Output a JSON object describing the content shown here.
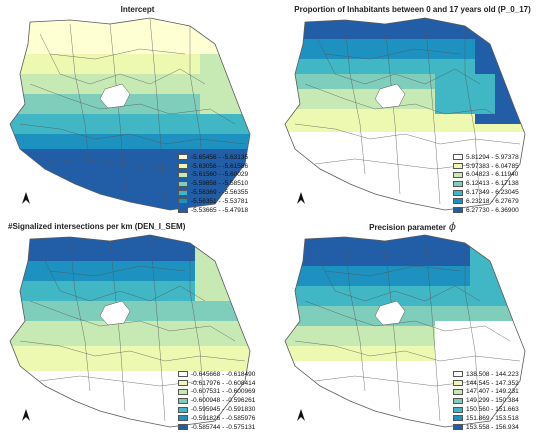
{
  "colors": {
    "outline": "#5a5a5a",
    "lake": "#ffffff",
    "ramp": [
      "#ffffff",
      "#eef6bb",
      "#c5e29a",
      "#7cc5ad",
      "#3fa8b6",
      "#2a7fb0",
      "#21559a"
    ]
  },
  "panels": [
    {
      "title": "Intercept",
      "legend": [
        {
          "label": "-5.65456 - -5.63135",
          "color": "#ffffd4"
        },
        {
          "label": "-5.63056 - -5.61586",
          "color": "#edf8b1"
        },
        {
          "label": "-5.61560 - -5.60029",
          "color": "#c7e9b4"
        },
        {
          "label": "-5.59858 - -5.58510",
          "color": "#7fcdbb"
        },
        {
          "label": "-5.58369 - -5.56355",
          "color": "#41b6c4"
        },
        {
          "label": "-5.56351 - -5.53781",
          "color": "#1d91c0"
        },
        {
          "label": "-5.53665 - -5.47918",
          "color": "#225ea8"
        }
      ]
    },
    {
      "title": "Proportion of Inhabitants between 0 and 17 years old (P_0_17)",
      "legend": [
        {
          "label": "5.81294 - 5.97378",
          "color": "#ffffff"
        },
        {
          "label": "5.97383 - 6.04785",
          "color": "#edf8b1"
        },
        {
          "label": "6.04823 - 6.11940",
          "color": "#c7e9b4"
        },
        {
          "label": "6.12413 - 6.17138",
          "color": "#7fcdbb"
        },
        {
          "label": "6.17349 - 6.23045",
          "color": "#41b6c4"
        },
        {
          "label": "6.23218 - 6.27679",
          "color": "#1d91c0"
        },
        {
          "label": "6.27730 - 6.36900",
          "color": "#225ea8"
        }
      ]
    },
    {
      "title": "#Signalized intersections per km (DEN_I_SEM)",
      "legend": [
        {
          "label": "-0.645668 - -0.618490",
          "color": "#ffffff"
        },
        {
          "label": "-0.617976 - -0.608414",
          "color": "#edf8b1"
        },
        {
          "label": "-0.607531 - -0.600969",
          "color": "#c7e9b4"
        },
        {
          "label": "-0.600948 - -0.596261",
          "color": "#7fcdbb"
        },
        {
          "label": "-0.595945 - -0.591830",
          "color": "#41b6c4"
        },
        {
          "label": "-0.591826 - -0.585976",
          "color": "#1d91c0"
        },
        {
          "label": "-0.585744 - -0.575131",
          "color": "#225ea8"
        }
      ]
    },
    {
      "title": "Precision parameter",
      "title_symbol": "ϕ",
      "legend": [
        {
          "label": "138.508 - 144.223",
          "color": "#ffffff"
        },
        {
          "label": "144.545 - 147.352",
          "color": "#edf8b1"
        },
        {
          "label": "147.407 - 149.231",
          "color": "#c7e9b4"
        },
        {
          "label": "149.299 - 150.384",
          "color": "#7fcdbb"
        },
        {
          "label": "150.560 - 151.663",
          "color": "#41b6c4"
        },
        {
          "label": "151.869 - 153.518",
          "color": "#1d91c0"
        },
        {
          "label": "153.558 - 156.934",
          "color": "#225ea8"
        }
      ]
    }
  ]
}
